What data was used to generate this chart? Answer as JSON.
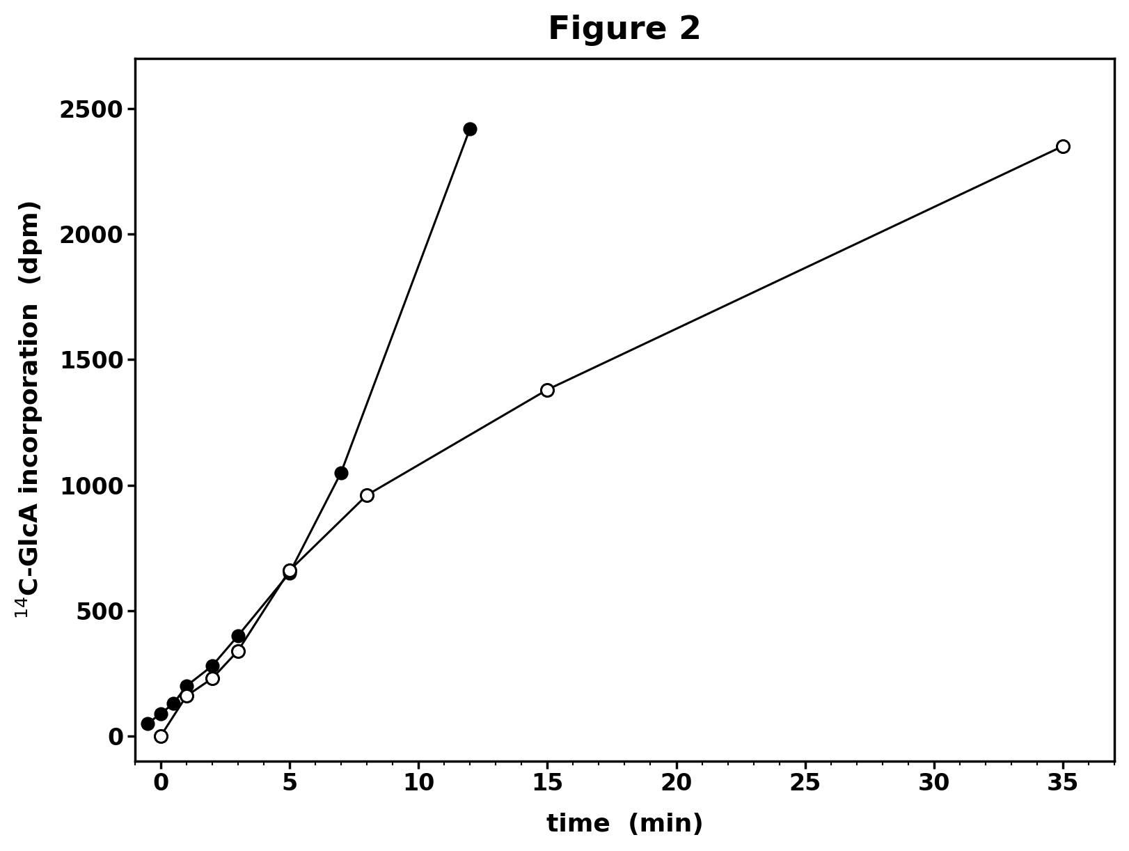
{
  "title": "Figure 2",
  "xlabel": "time  (min)",
  "ylabel": "$^{14}$C-GlcA incorporation  (dpm)",
  "filled_x": [
    -0.5,
    0,
    0.5,
    1,
    2,
    3,
    5,
    7,
    12
  ],
  "filled_y": [
    50,
    90,
    130,
    200,
    280,
    400,
    650,
    1050,
    2420
  ],
  "open_x": [
    0,
    1,
    2,
    3,
    5,
    8,
    15,
    35
  ],
  "open_y": [
    0,
    160,
    230,
    340,
    660,
    960,
    1380,
    2350
  ],
  "xlim": [
    -1,
    37
  ],
  "ylim": [
    -100,
    2700
  ],
  "yticks": [
    0,
    500,
    1000,
    1500,
    2000,
    2500
  ],
  "xticks": [
    0,
    5,
    10,
    15,
    20,
    25,
    30,
    35
  ],
  "background_color": "#ffffff",
  "line_color": "#000000",
  "marker_size": 13,
  "line_width": 2.2,
  "title_fontsize": 34,
  "label_fontsize": 26,
  "tick_fontsize": 24
}
